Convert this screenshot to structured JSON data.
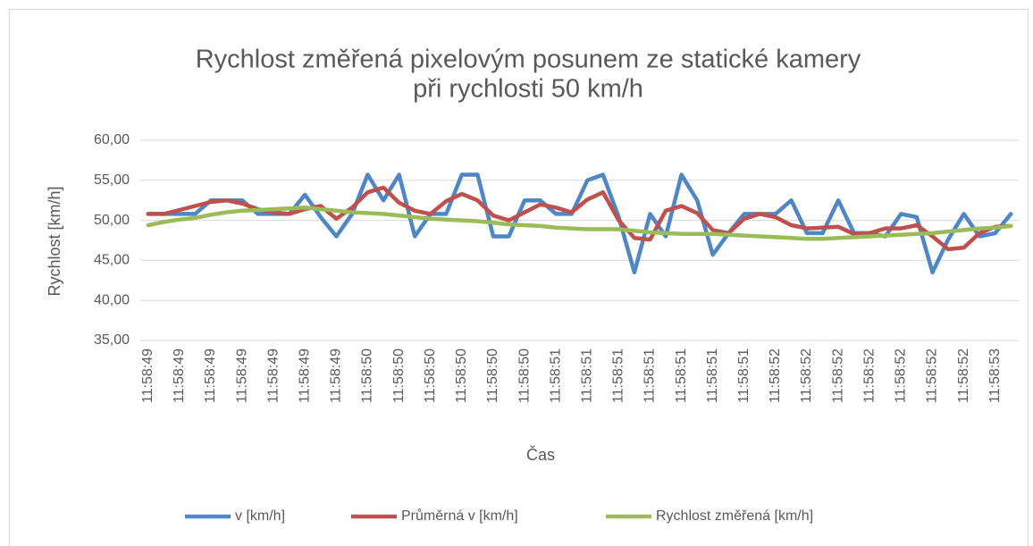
{
  "chart_data": {
    "type": "line",
    "title": [
      "Rychlost změřená pixelovým posunem ze statické kamery",
      "při rychlosti 50 km/h"
    ],
    "x_label": "Čas",
    "y_label": "Rychlost [km/h]",
    "categories": [
      "11:58:49",
      null,
      "11:58:49",
      null,
      "11:58:49",
      null,
      "11:58:49",
      null,
      "11:58:49",
      null,
      "11:58:49",
      null,
      "11:58:49",
      null,
      "11:58:50",
      null,
      "11:58:50",
      null,
      "11:58:50",
      null,
      "11:58:50",
      null,
      "11:58:50",
      null,
      "11:58:50",
      null,
      "11:58:51",
      null,
      "11:58:51",
      null,
      "11:58:51",
      null,
      "11:58:51",
      null,
      "11:58:51",
      null,
      "11:58:51",
      null,
      "11:58:51",
      null,
      "11:58:52",
      null,
      "11:58:52",
      null,
      "11:58:52",
      null,
      "11:58:52",
      null,
      "11:58:52",
      null,
      "11:58:52",
      null,
      "11:58:52",
      null,
      "11:58:53",
      null
    ],
    "series": [
      {
        "name": "v [km/h]",
        "color": "#4e86c6",
        "values": [
          50.8,
          50.8,
          50.8,
          50.8,
          52.5,
          52.5,
          52.5,
          50.8,
          50.8,
          50.8,
          53.2,
          50.4,
          48.0,
          50.8,
          55.7,
          52.5,
          55.7,
          48.0,
          50.8,
          50.8,
          55.7,
          55.7,
          48.0,
          48.0,
          52.5,
          52.5,
          50.8,
          50.8,
          55.0,
          55.7,
          50.4,
          43.5,
          50.8,
          48.0,
          55.7,
          52.5,
          45.7,
          48.4,
          50.8,
          50.8,
          50.8,
          52.5,
          48.4,
          48.4,
          52.5,
          48.4,
          48.4,
          48.0,
          50.8,
          50.4,
          43.5,
          47.6,
          50.8,
          48.0,
          48.4,
          50.8
        ]
      },
      {
        "name": "Průměrná v [km/h]",
        "color": "#c0504d",
        "values": [
          50.8,
          50.8,
          51.3,
          51.8,
          52.3,
          52.5,
          52.1,
          51.4,
          51.0,
          50.8,
          51.4,
          51.8,
          50.2,
          51.6,
          53.5,
          54.1,
          52.2,
          51.2,
          50.8,
          52.4,
          53.3,
          52.5,
          50.6,
          50.0,
          51.0,
          52.0,
          51.6,
          51.0,
          52.6,
          53.5,
          50.0,
          47.8,
          47.6,
          51.2,
          51.8,
          50.9,
          48.8,
          48.4,
          50.2,
          50.8,
          50.4,
          49.4,
          49.0,
          49.1,
          49.2,
          48.3,
          48.4,
          49.0,
          49.0,
          49.4,
          48.0,
          46.4,
          46.6,
          48.4,
          49.2,
          49.3
        ]
      },
      {
        "name": "Rychlost změřená [km/h]",
        "color": "#9bbb59",
        "values": [
          49.4,
          49.8,
          50.1,
          50.3,
          50.7,
          51.0,
          51.2,
          51.3,
          51.4,
          51.5,
          51.6,
          51.4,
          51.2,
          51.0,
          50.9,
          50.8,
          50.6,
          50.4,
          50.2,
          50.1,
          50.0,
          49.9,
          49.7,
          49.5,
          49.4,
          49.3,
          49.1,
          49.0,
          48.9,
          48.9,
          48.9,
          48.7,
          48.5,
          48.4,
          48.3,
          48.3,
          48.3,
          48.2,
          48.1,
          48.0,
          47.9,
          47.8,
          47.7,
          47.7,
          47.8,
          47.9,
          48.0,
          48.1,
          48.2,
          48.3,
          48.4,
          48.6,
          48.8,
          49.0,
          49.1,
          49.3
        ]
      }
    ],
    "ylim": [
      35,
      60
    ],
    "yticks": [
      {
        "value": 35,
        "label": "35,00"
      },
      {
        "value": 40,
        "label": "40,00"
      },
      {
        "value": 45,
        "label": "45,00"
      },
      {
        "value": 50,
        "label": "50,00"
      },
      {
        "value": 55,
        "label": "55,00"
      },
      {
        "value": 60,
        "label": "60,00"
      }
    ],
    "grid": true,
    "legend": "bottom"
  }
}
